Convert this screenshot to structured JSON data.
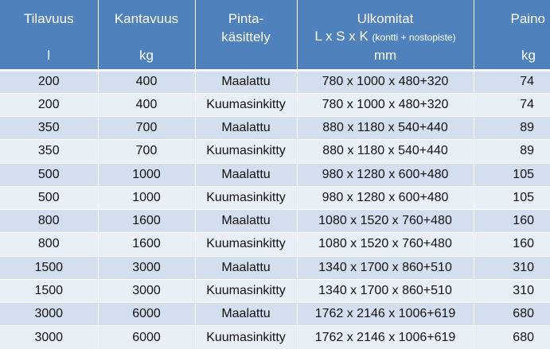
{
  "headers": {
    "tilavuus": {
      "title": "Tilavuus",
      "unit": "l"
    },
    "kantavuus": {
      "title": "Kantavuus",
      "unit": "kg"
    },
    "pintakasittely": {
      "line1": "Pinta-",
      "line2": "käsittely"
    },
    "ulkomitat": {
      "title": "Ulkomitat",
      "dims_main": "L x S x K",
      "dims_note": "(kontti + nostopiste)",
      "unit": "mm"
    },
    "paino": {
      "title": "Paino",
      "unit": "kg"
    }
  },
  "rows": [
    {
      "tilavuus": "200",
      "kantavuus": "400",
      "pinta": "Maalattu",
      "ulkomitat": "780 x 1000 x 480+320",
      "paino": "74"
    },
    {
      "tilavuus": "200",
      "kantavuus": "400",
      "pinta": "Kuumasinkitty",
      "ulkomitat": "780 x 1000 x 480+320",
      "paino": "74"
    },
    {
      "tilavuus": "350",
      "kantavuus": "700",
      "pinta": "Maalattu",
      "ulkomitat": "880 x 1180 x 540+440",
      "paino": "89"
    },
    {
      "tilavuus": "350",
      "kantavuus": "700",
      "pinta": "Kuumasinkitty",
      "ulkomitat": "880 x 1180 x 540+440",
      "paino": "89"
    },
    {
      "tilavuus": "500",
      "kantavuus": "1000",
      "pinta": "Maalattu",
      "ulkomitat": "980 x 1280 x 600+480",
      "paino": "105"
    },
    {
      "tilavuus": "500",
      "kantavuus": "1000",
      "pinta": "Kuumasinkitty",
      "ulkomitat": "980 x 1280 x 600+480",
      "paino": "105"
    },
    {
      "tilavuus": "800",
      "kantavuus": "1600",
      "pinta": "Maalattu",
      "ulkomitat": "1080 x 1520 x 760+480",
      "paino": "160"
    },
    {
      "tilavuus": "800",
      "kantavuus": "1600",
      "pinta": "Kuumasinkitty",
      "ulkomitat": "1080 x 1520 x 760+480",
      "paino": "160"
    },
    {
      "tilavuus": "1500",
      "kantavuus": "3000",
      "pinta": "Maalattu",
      "ulkomitat": "1340 x 1700 x 860+510",
      "paino": "310"
    },
    {
      "tilavuus": "1500",
      "kantavuus": "3000",
      "pinta": "Kuumasinkitty",
      "ulkomitat": "1340 x 1700 x 860+510",
      "paino": "310"
    },
    {
      "tilavuus": "3000",
      "kantavuus": "6000",
      "pinta": "Maalattu",
      "ulkomitat": "1762 x 2146 x 1006+619",
      "paino": "680"
    },
    {
      "tilavuus": "3000",
      "kantavuus": "6000",
      "pinta": "Kuumasinkitty",
      "ulkomitat": "1762 x 2146 x 1006+619",
      "paino": "680"
    }
  ],
  "colors": {
    "header_bg": "#4f81bd",
    "header_text": "#ffffff",
    "row_odd_bg": "#d3dfee",
    "row_even_bg": "#e9eff7"
  }
}
